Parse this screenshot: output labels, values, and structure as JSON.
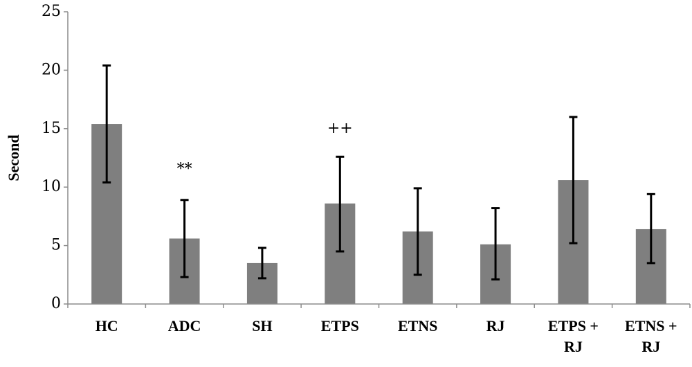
{
  "chart_data": {
    "type": "bar",
    "title": "",
    "xlabel": "",
    "ylabel": "Second",
    "ylim": [
      0,
      25
    ],
    "yticks": [
      0,
      5,
      10,
      15,
      20,
      25
    ],
    "grid": false,
    "legend": "none",
    "bar_color": "#7f7f7f",
    "errorbar_color": "#000000",
    "categories": [
      [
        "HC"
      ],
      [
        "ADC"
      ],
      [
        "SH"
      ],
      [
        "ETPS"
      ],
      [
        "ETNS"
      ],
      [
        "RJ"
      ],
      [
        "ETPS +",
        "RJ"
      ],
      [
        "ETNS +",
        "RJ"
      ]
    ],
    "series": [
      {
        "values": [
          15.4,
          5.6,
          3.5,
          8.6,
          6.2,
          5.1,
          10.6,
          6.4
        ],
        "error_low": [
          10.4,
          2.3,
          2.2,
          4.5,
          2.5,
          2.1,
          5.2,
          3.5
        ],
        "error_high": [
          20.4,
          8.9,
          4.8,
          12.6,
          9.9,
          8.2,
          16.0,
          9.4
        ]
      }
    ],
    "annotations": [
      {
        "category_index": 1,
        "text": "**",
        "y": 11.5
      },
      {
        "category_index": 3,
        "text": "++",
        "y": 15.0
      }
    ]
  }
}
